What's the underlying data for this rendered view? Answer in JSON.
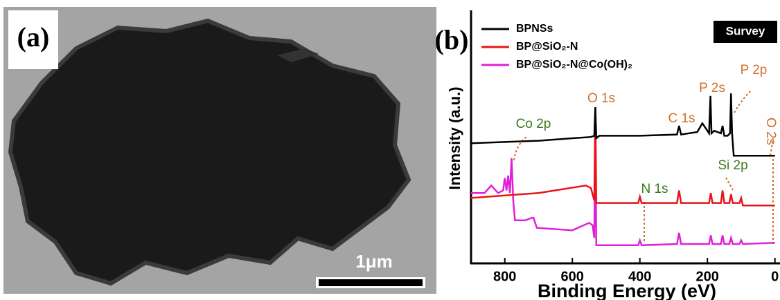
{
  "panel_a": {
    "label": "(a)",
    "scale_bar": "1μm"
  },
  "chart_data": {
    "type": "line",
    "panel_label": "(b)",
    "tag": "Survey",
    "x_label": "Binding Energy (eV)",
    "y_label": "Intensity (a.u.)",
    "xlim": [
      900,
      -15
    ],
    "ylim": [
      0,
      100
    ],
    "xticks": [
      800,
      600,
      400,
      200,
      0
    ],
    "series": [
      {
        "name": "BPNSs",
        "color": "#000000",
        "x": [
          900,
          800,
          700,
          600,
          545,
          535,
          532,
          529,
          520,
          400,
          290,
          284,
          278,
          230,
          215,
          205,
          195,
          191,
          188,
          180,
          160,
          155,
          150,
          140,
          133,
          130,
          127,
          122,
          100,
          50,
          0
        ],
        "values": [
          48,
          48.5,
          49,
          50,
          50.5,
          51,
          62.5,
          50,
          51,
          51,
          51.5,
          55,
          51.5,
          52.5,
          56,
          54,
          52,
          67,
          52,
          53,
          52,
          55,
          51,
          51,
          52,
          68,
          52,
          43,
          43,
          43,
          43
        ]
      },
      {
        "name": "BP@SiO₂-N",
        "color": "#e8141a",
        "x": [
          900,
          700,
          560,
          545,
          535,
          532,
          529,
          520,
          405,
          400,
          395,
          290,
          284,
          278,
          195,
          190,
          185,
          160,
          155,
          150,
          135,
          130,
          125,
          105,
          100,
          95,
          0
        ],
        "values": [
          26,
          28,
          31,
          30,
          25,
          62,
          24,
          24,
          24,
          26.5,
          24,
          24,
          29,
          24,
          24,
          28,
          24,
          24,
          29,
          24,
          24,
          27.5,
          24,
          24,
          26,
          23,
          23
        ]
      },
      {
        "name": "BP@SiO₂-N@Co(OH)₂",
        "color": "#e020d8",
        "x": [
          900,
          860,
          840,
          820,
          805,
          800,
          795,
          790,
          785,
          780,
          775,
          770,
          740,
          720,
          715,
          705,
          600,
          550,
          540,
          535,
          532,
          529,
          520,
          405,
          400,
          395,
          290,
          284,
          278,
          195,
          190,
          185,
          160,
          155,
          150,
          135,
          130,
          125,
          105,
          100,
          95,
          0
        ],
        "values": [
          28,
          28,
          31,
          28,
          29,
          34,
          29,
          35,
          28,
          42,
          25,
          17,
          17,
          18,
          18,
          14,
          13,
          16,
          15,
          10,
          60,
          7,
          7,
          7,
          9,
          7,
          7.5,
          12,
          7.5,
          7.5,
          11,
          7.5,
          7.5,
          11,
          7.5,
          7.5,
          10,
          7.5,
          7.5,
          9,
          7.5,
          8
        ]
      }
    ],
    "annotations": [
      {
        "text": "Co 2p",
        "color": "#3a7a1c"
      },
      {
        "text": "O 1s",
        "color": "#d0702a"
      },
      {
        "text": "C 1s",
        "color": "#d0702a"
      },
      {
        "text": "P 2s",
        "color": "#d0702a"
      },
      {
        "text": "P 2p",
        "color": "#d0702a"
      },
      {
        "text": "O 2s",
        "color": "#d0702a"
      },
      {
        "text": "N 1s",
        "color": "#3a7a1c"
      },
      {
        "text": "Si 2p",
        "color": "#3a7a1c"
      }
    ]
  }
}
